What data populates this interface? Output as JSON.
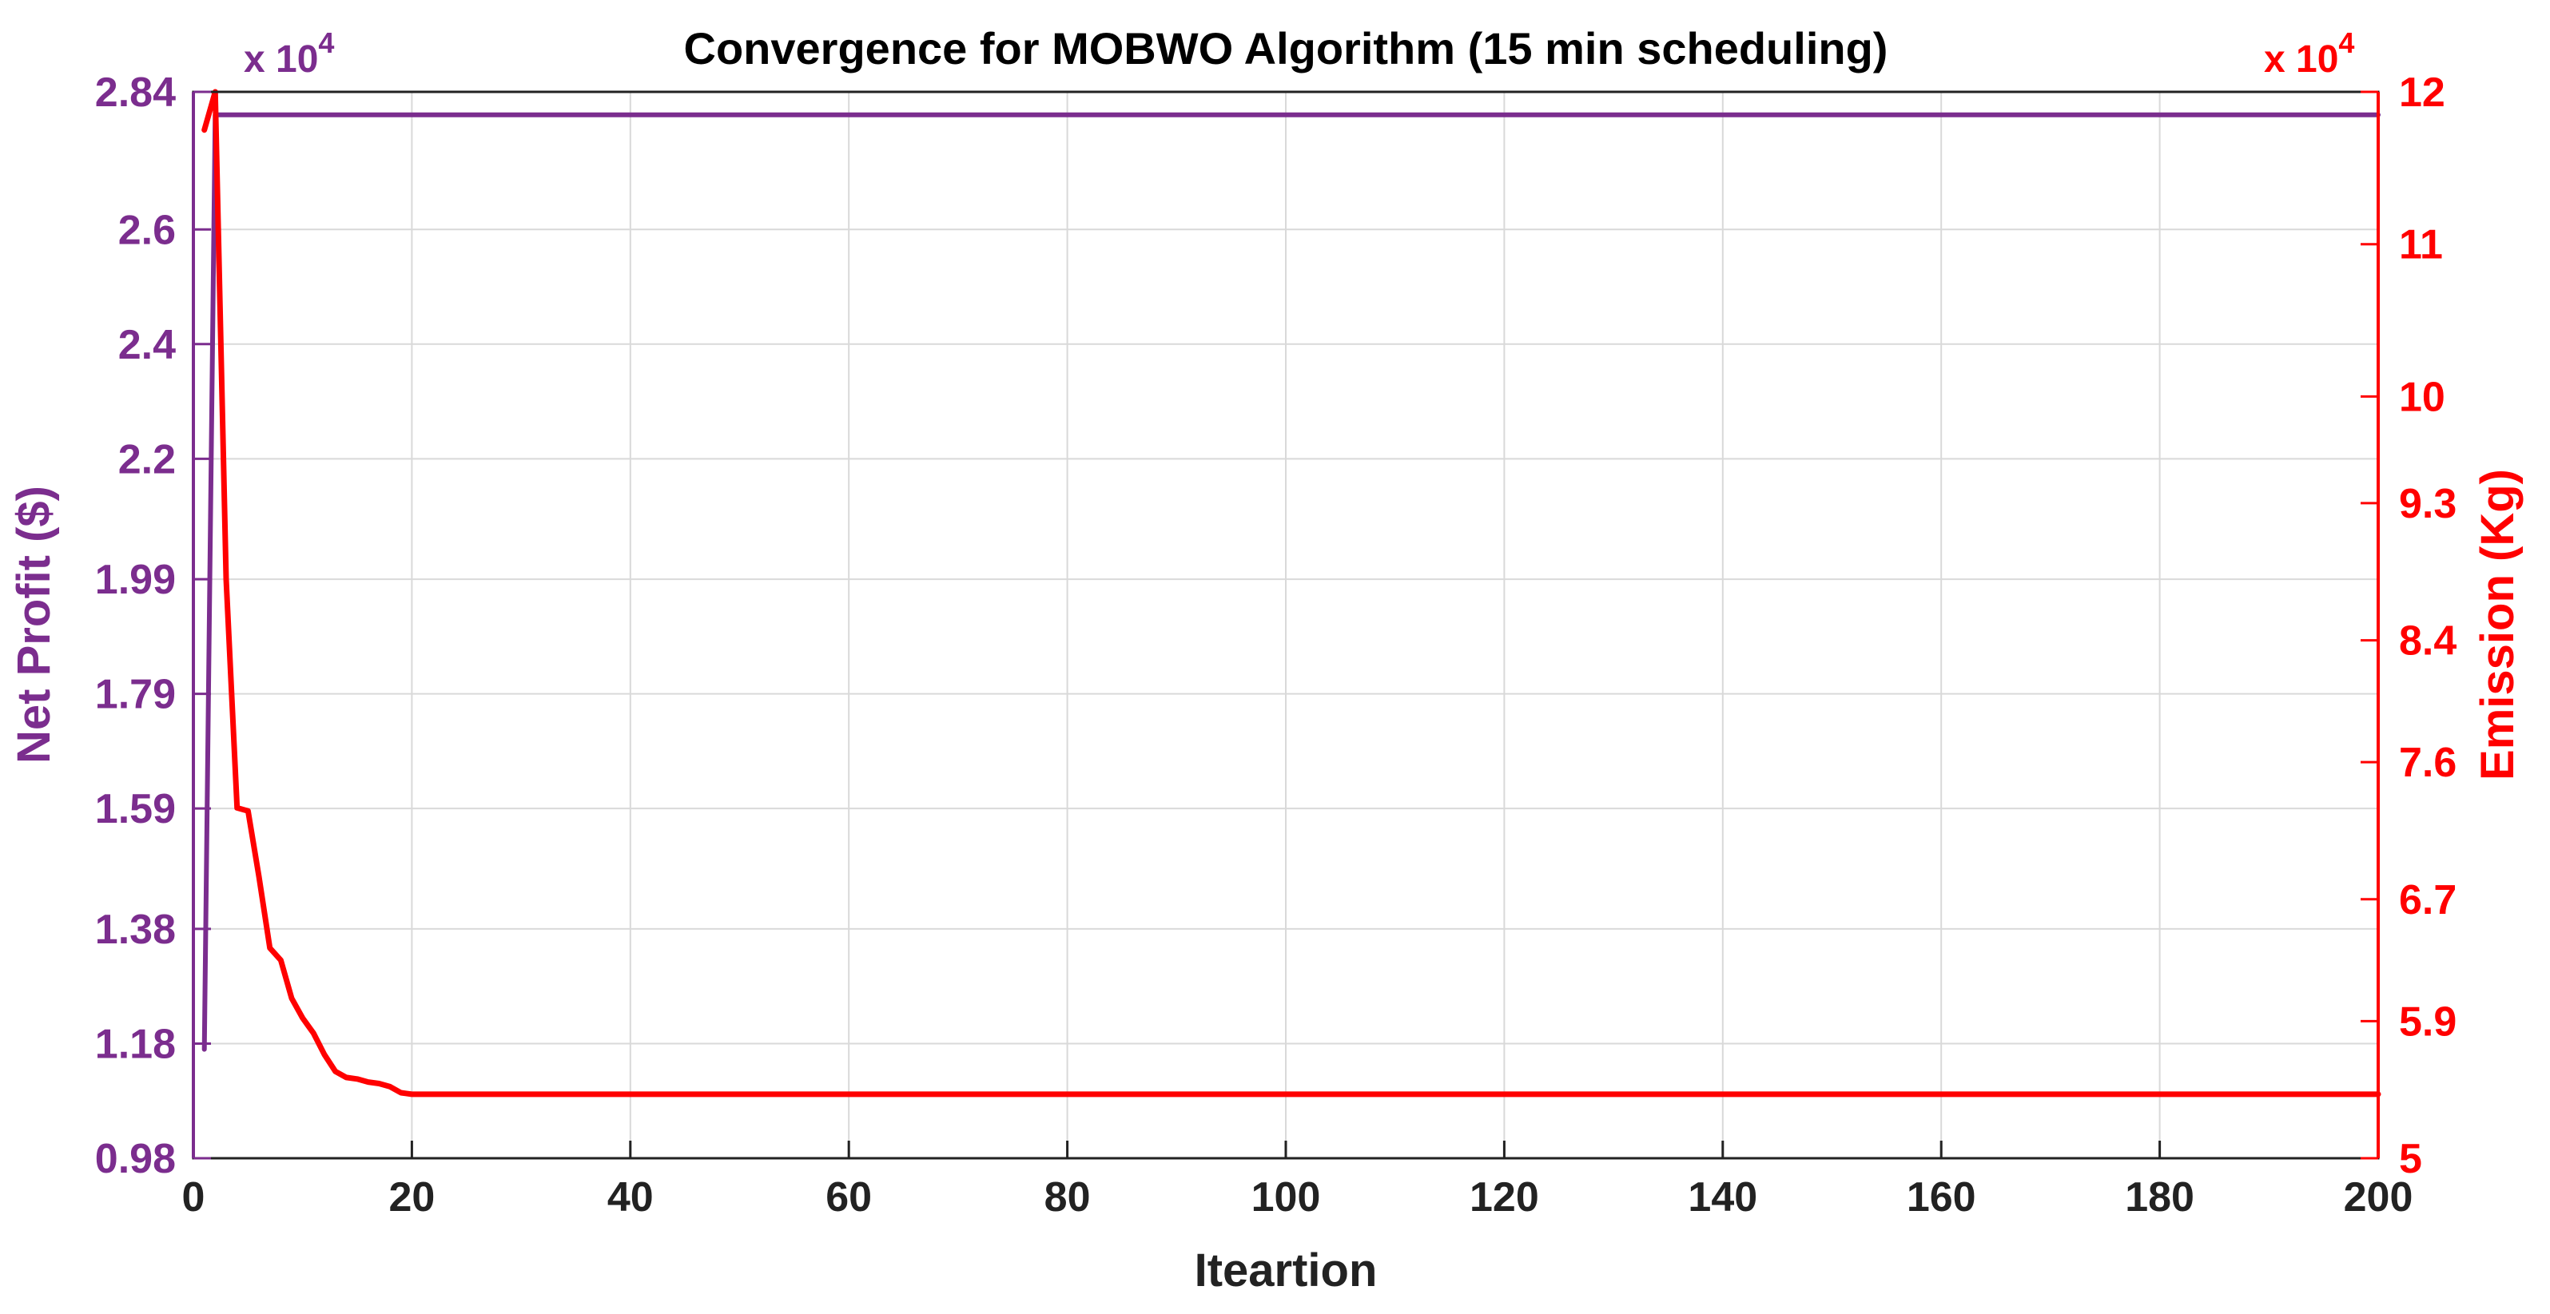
{
  "chart_data": {
    "type": "line",
    "title": "Convergence for MOBWO Algorithm (15 min scheduling)",
    "xlabel": "Iteartion",
    "xlim": [
      0,
      200
    ],
    "xticks": [
      0,
      20,
      40,
      60,
      80,
      100,
      120,
      140,
      160,
      180,
      200
    ],
    "grid": true,
    "left_axis": {
      "label": "Net Profit ($)",
      "color": "#7b2d8e",
      "exponent_label": "x 10",
      "exponent_power": "4",
      "ylim": [
        0.98,
        2.84
      ],
      "ticks": [
        0.98,
        1.18,
        1.38,
        1.59,
        1.79,
        1.99,
        2.2,
        2.4,
        2.6,
        2.84
      ],
      "tick_labels": [
        "0.98",
        "1.18",
        "1.38",
        "1.59",
        "1.79",
        "1.99",
        "2.2",
        "2.4",
        "2.6",
        "2.84"
      ]
    },
    "right_axis": {
      "label": "Emission (Kg)",
      "color": "#ff0000",
      "exponent_label": "x 10",
      "exponent_power": "4",
      "ylim": [
        5,
        12
      ],
      "ticks": [
        5,
        5.9,
        6.7,
        7.6,
        8.4,
        9.3,
        10,
        11,
        12
      ],
      "tick_labels": [
        "5",
        "5.9",
        "6.7",
        "7.6",
        "8.4",
        "9.3",
        "10",
        "11",
        "12"
      ]
    },
    "series": [
      {
        "axis": "left",
        "color": "#7b2d8e",
        "x": [
          1,
          2,
          3,
          200
        ],
        "y": [
          1.17,
          2.8,
          2.8,
          2.8
        ]
      },
      {
        "axis": "right",
        "color": "#ff0000",
        "x": [
          1,
          2,
          3,
          4,
          5,
          6,
          7,
          8,
          9,
          10,
          11,
          12,
          13,
          14,
          15,
          16,
          17,
          18,
          19,
          20,
          30,
          50,
          100,
          150,
          200
        ],
        "y": [
          11.75,
          12.0,
          8.8,
          7.3,
          7.28,
          6.85,
          6.38,
          6.3,
          6.05,
          5.92,
          5.82,
          5.68,
          5.57,
          5.53,
          5.52,
          5.5,
          5.49,
          5.47,
          5.43,
          5.42,
          5.42,
          5.42,
          5.42,
          5.42,
          5.42
        ]
      }
    ]
  }
}
